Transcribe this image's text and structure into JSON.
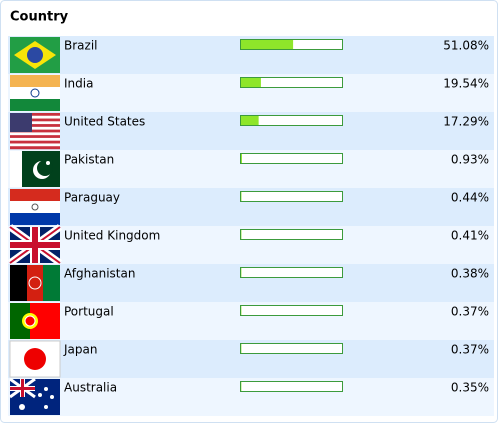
{
  "header": {
    "title": "Country"
  },
  "table": {
    "xlim": [
      0,
      100
    ],
    "rows": [
      {
        "name": "Brazil",
        "value": 51.08,
        "value_label": "51.08%"
      },
      {
        "name": "India",
        "value": 19.54,
        "value_label": "19.54%"
      },
      {
        "name": "United States",
        "value": 17.29,
        "value_label": "17.29%"
      },
      {
        "name": "Pakistan",
        "value": 0.93,
        "value_label": "0.93%"
      },
      {
        "name": "Paraguay",
        "value": 0.44,
        "value_label": "0.44%"
      },
      {
        "name": "United Kingdom",
        "value": 0.41,
        "value_label": "0.41%"
      },
      {
        "name": "Afghanistan",
        "value": 0.38,
        "value_label": "0.38%"
      },
      {
        "name": "Portugal",
        "value": 0.37,
        "value_label": "0.37%"
      },
      {
        "name": "Japan",
        "value": 0.37,
        "value_label": "0.37%"
      },
      {
        "name": "Australia",
        "value": 0.35,
        "value_label": "0.35%"
      }
    ]
  }
}
